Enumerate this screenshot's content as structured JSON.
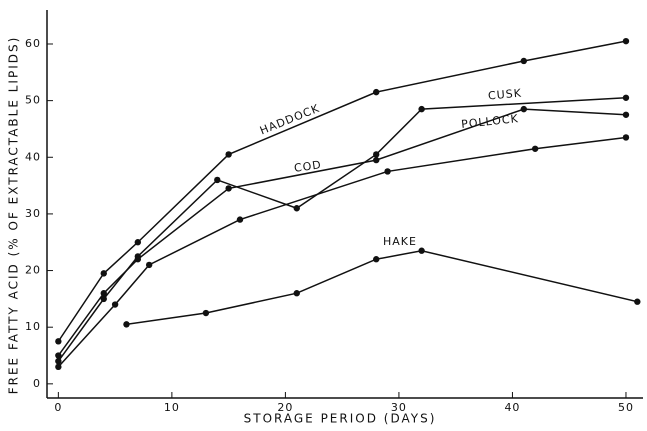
{
  "chart_data": {
    "type": "line",
    "xlabel": "STORAGE PERIOD (DAYS)",
    "ylabel": "FREE FATTY ACID (% OF EXTRACTABLE LIPIDS)",
    "xlim": [
      -1,
      51.5
    ],
    "ylim": [
      -2.5,
      66
    ],
    "xticks": [
      0,
      10,
      20,
      30,
      40,
      50
    ],
    "yticks": [
      0,
      10,
      20,
      30,
      40,
      50,
      60
    ],
    "grid": false,
    "series": [
      {
        "name": "HADDOCK",
        "color": "#111111",
        "x": [
          0,
          4,
          7,
          15,
          28,
          41,
          50
        ],
        "values": [
          7.5,
          19.5,
          25,
          40.5,
          51.5,
          57,
          60.5
        ]
      },
      {
        "name": "CUSK",
        "color": "#111111",
        "x": [
          0,
          4,
          7,
          14,
          21,
          28,
          32,
          50
        ],
        "values": [
          4,
          15,
          22.5,
          36,
          31,
          40.5,
          48.5,
          50.5
        ]
      },
      {
        "name": "COD",
        "color": "#111111",
        "x": [
          0,
          4,
          7,
          15,
          28,
          41,
          50
        ],
        "values": [
          5,
          16,
          22,
          34.5,
          39.5,
          48.5,
          47.5
        ]
      },
      {
        "name": "POLLOCK",
        "color": "#111111",
        "x": [
          0,
          5,
          8,
          16,
          29,
          42,
          50
        ],
        "values": [
          3,
          14,
          21,
          29,
          37.5,
          41.5,
          43.5
        ]
      },
      {
        "name": "HAKE",
        "color": "#111111",
        "x": [
          6,
          13,
          21,
          28,
          32,
          51
        ],
        "values": [
          10.5,
          12.5,
          16,
          22,
          23.5,
          14.5
        ]
      }
    ]
  }
}
